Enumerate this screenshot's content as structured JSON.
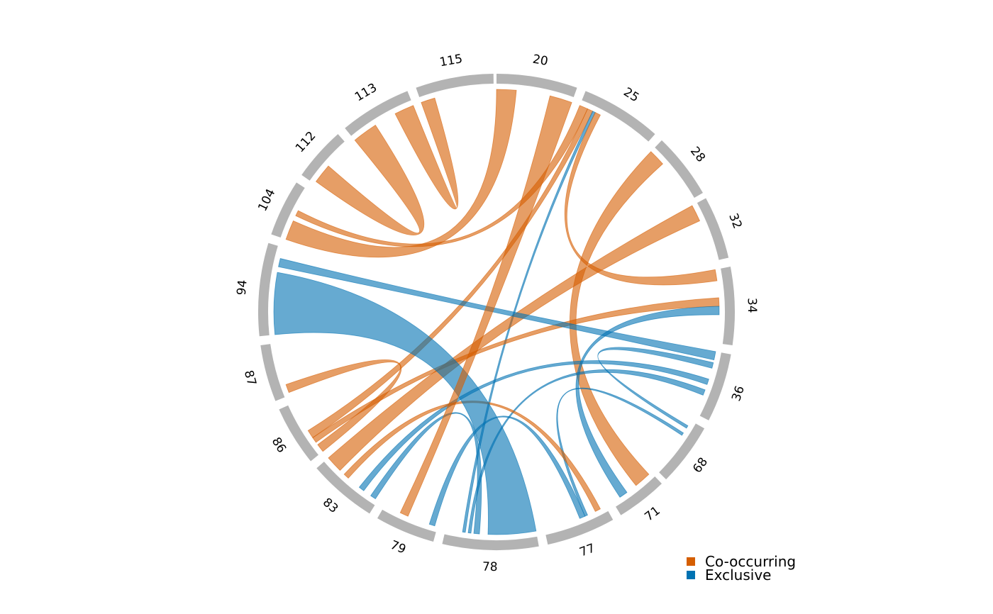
{
  "chart_data": {
    "type": "chord",
    "title": "",
    "segments": [
      {
        "label": "20",
        "start": 0,
        "end": 27
      },
      {
        "label": "25",
        "start": 30,
        "end": 57
      },
      {
        "label": "28",
        "start": 60,
        "end": 82
      },
      {
        "label": "32",
        "start": 84,
        "end": 105
      },
      {
        "label": "34",
        "start": 108,
        "end": 134
      },
      {
        "label": "36",
        "start": 137,
        "end": 160
      },
      {
        "label": "68",
        "start": 163,
        "end": 184
      },
      {
        "label": "71",
        "start": 186,
        "end": 203
      },
      {
        "label": "77",
        "start": 206,
        "end": 229
      },
      {
        "label": "78",
        "start": 232,
        "end": 264
      },
      {
        "label": "79",
        "start": 267,
        "end": 287
      },
      {
        "label": "83",
        "start": 290,
        "end": 313
      },
      {
        "label": "86",
        "start": 316,
        "end": 336
      },
      {
        "label": "87",
        "start": 339,
        "end": 358
      },
      {
        "label": "94",
        "start": 361,
        "end": 392
      },
      {
        "label": "104",
        "start": 395,
        "end": 414
      },
      {
        "label": "112",
        "start": 417,
        "end": 435
      },
      {
        "label": "113",
        "start": 438,
        "end": 462
      },
      {
        "label": "115",
        "start": 465,
        "end": 491
      }
    ],
    "total": 492,
    "links": [
      {
        "from": "20",
        "to": "104",
        "type": "Co-occurring",
        "a": [
          0,
          7
        ],
        "b": [
          395,
          402
        ]
      },
      {
        "from": "25",
        "to": "104",
        "type": "Co-occurring",
        "a": [
          30,
          33
        ],
        "b": [
          404,
          406
        ]
      },
      {
        "from": "25",
        "to": "86",
        "type": "Co-occurring",
        "a": [
          33,
          35
        ],
        "b": [
          322,
          325
        ]
      },
      {
        "from": "25",
        "to": "78",
        "type": "Exclusive",
        "a": [
          35,
          36
        ],
        "b": [
          257,
          258
        ]
      },
      {
        "from": "25",
        "to": "34",
        "type": "Co-occurring",
        "a": [
          36,
          38
        ],
        "b": [
          108,
          112
        ]
      },
      {
        "from": "28",
        "to": "71",
        "type": "Co-occurring",
        "a": [
          60,
          66
        ],
        "b": [
          187,
          193
        ]
      },
      {
        "from": "32",
        "to": "83",
        "type": "Co-occurring",
        "a": [
          84,
          90
        ],
        "b": [
          307,
          313
        ]
      },
      {
        "from": "34",
        "to": "86",
        "type": "Co-occurring",
        "a": [
          118,
          121
        ],
        "b": [
          320,
          322
        ]
      },
      {
        "from": "34",
        "to": "71",
        "type": "Exclusive",
        "a": [
          121,
          124
        ],
        "b": [
          197,
          200
        ]
      },
      {
        "from": "36",
        "to": "94",
        "type": "Exclusive",
        "a": [
          137,
          140
        ],
        "b": [
          385,
          388
        ]
      },
      {
        "from": "36",
        "to": "68",
        "type": "Exclusive",
        "a": [
          141,
          143
        ],
        "b": [
          165,
          166
        ]
      },
      {
        "from": "36",
        "to": "83",
        "type": "Exclusive",
        "a": [
          147,
          149
        ],
        "b": [
          296,
          298
        ]
      },
      {
        "from": "36",
        "to": "78",
        "type": "Exclusive",
        "a": [
          151,
          153
        ],
        "b": [
          255,
          256
        ]
      },
      {
        "from": "68",
        "to": "77",
        "type": "Exclusive",
        "a": [
          168,
          169
        ],
        "b": [
          213,
          214
        ]
      },
      {
        "from": "77",
        "to": "83",
        "type": "Co-occurring",
        "a": [
          208,
          210
        ],
        "b": [
          303,
          305
        ]
      },
      {
        "from": "77",
        "to": "79",
        "type": "Exclusive",
        "a": [
          214,
          216
        ],
        "b": [
          268,
          270
        ]
      },
      {
        "from": "78",
        "to": "94",
        "type": "Exclusive",
        "a": [
          232,
          249
        ],
        "b": [
          361,
          383
        ]
      },
      {
        "from": "78",
        "to": "83",
        "type": "Exclusive",
        "a": [
          252,
          254
        ],
        "b": [
          291,
          293
        ]
      },
      {
        "from": "79",
        "to": "20",
        "type": "Co-occurring",
        "a": [
          278,
          281
        ],
        "b": [
          19,
          27
        ]
      },
      {
        "from": "87",
        "to": "86",
        "type": "Co-occurring",
        "a": [
          340,
          343
        ],
        "b": [
          316,
          319
        ]
      },
      {
        "from": "113",
        "to": "112",
        "type": "Co-occurring",
        "a": [
          438,
          447
        ],
        "b": [
          418,
          425
        ]
      },
      {
        "from": "115",
        "to": "113",
        "type": "Co-occurring",
        "a": [
          465,
          470
        ],
        "b": [
          455,
          462
        ]
      }
    ],
    "legend": [
      {
        "name": "Co-occurring",
        "color": "#D55E00"
      },
      {
        "name": "Exclusive",
        "color": "#0072B2"
      }
    ],
    "legend_position": "bottom-right",
    "ring_color": "#B3B3B3"
  }
}
